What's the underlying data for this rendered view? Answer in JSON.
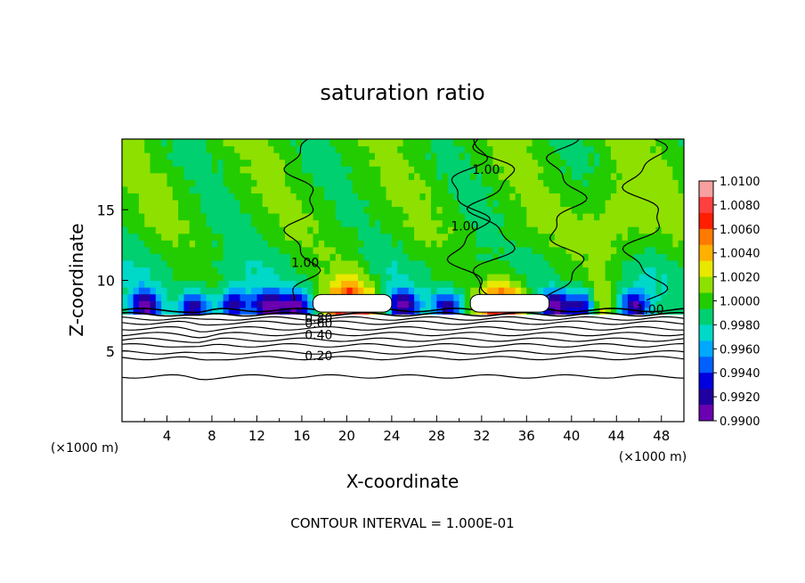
{
  "chart_data": {
    "type": "heatmap",
    "title": "saturation ratio",
    "xlabel": "X-coordinate",
    "ylabel": "Z-coordinate",
    "x_unit_left": "(×1000 m)",
    "x_unit_right": "(×1000 m)",
    "footer": "CONTOUR INTERVAL = 1.000E-01",
    "xlim": [
      0,
      50
    ],
    "ylim": [
      0,
      20
    ],
    "x_ticks": [
      4,
      8,
      12,
      16,
      20,
      24,
      28,
      32,
      36,
      40,
      44,
      48
    ],
    "y_ticks": [
      5,
      10,
      15
    ],
    "colorbar": {
      "min": 0.99,
      "max": 1.01,
      "labels": [
        "1.0100",
        "1.0080",
        "1.0060",
        "1.0040",
        "1.0020",
        "1.0000",
        "0.9980",
        "0.9960",
        "0.9940",
        "0.9920",
        "0.9900"
      ],
      "colors": [
        "#f6a0a0",
        "#ff4040",
        "#ff1e00",
        "#ff7a00",
        "#ffb000",
        "#e8e800",
        "#8ee000",
        "#22cc00",
        "#00d070",
        "#00d8c8",
        "#00a8ff",
        "#0060ff",
        "#0000e0",
        "#2000a0",
        "#6a00b0"
      ]
    },
    "contour_labels": [
      {
        "text": "1.00",
        "x": 16.3,
        "y": 11.2
      },
      {
        "text": "1.00",
        "x": 30.5,
        "y": 13.8
      },
      {
        "text": "1.00",
        "x": 32.4,
        "y": 17.8
      },
      {
        "text": "1.00",
        "x": 47.0,
        "y": 7.9
      },
      {
        "text": "0.80",
        "x": 17.5,
        "y": 7.3
      },
      {
        "text": "0.60",
        "x": 17.5,
        "y": 6.9
      },
      {
        "text": "0.40",
        "x": 17.5,
        "y": 6.1
      },
      {
        "text": "0.20",
        "x": 17.5,
        "y": 4.6
      }
    ],
    "contour_levels_below_cloud": [
      7.9,
      7.6,
      7.3,
      7.0,
      6.6,
      6.2,
      5.8,
      5.4,
      4.9,
      4.5,
      3.2
    ],
    "cloud_blocks": [
      {
        "x0": 17.0,
        "x1": 24.0,
        "y0": 7.75,
        "y1": 9.0
      },
      {
        "x0": 31.0,
        "x1": 38.0,
        "y0": 7.75,
        "y1": 9.0
      }
    ],
    "warm_peaks": [
      {
        "x": 20.5,
        "amplitude": 1.0,
        "width": 2.2
      },
      {
        "x": 34.0,
        "amplitude": 1.0,
        "width": 2.0
      },
      {
        "x": 42.5,
        "amplitude": 0.35,
        "width": 1.2
      }
    ],
    "dry_spots": [
      2.0,
      6.5,
      10.0,
      13.0,
      15.5,
      25.0,
      29.0,
      38.5,
      41.0,
      45.5
    ],
    "legend": "colorbar right"
  }
}
